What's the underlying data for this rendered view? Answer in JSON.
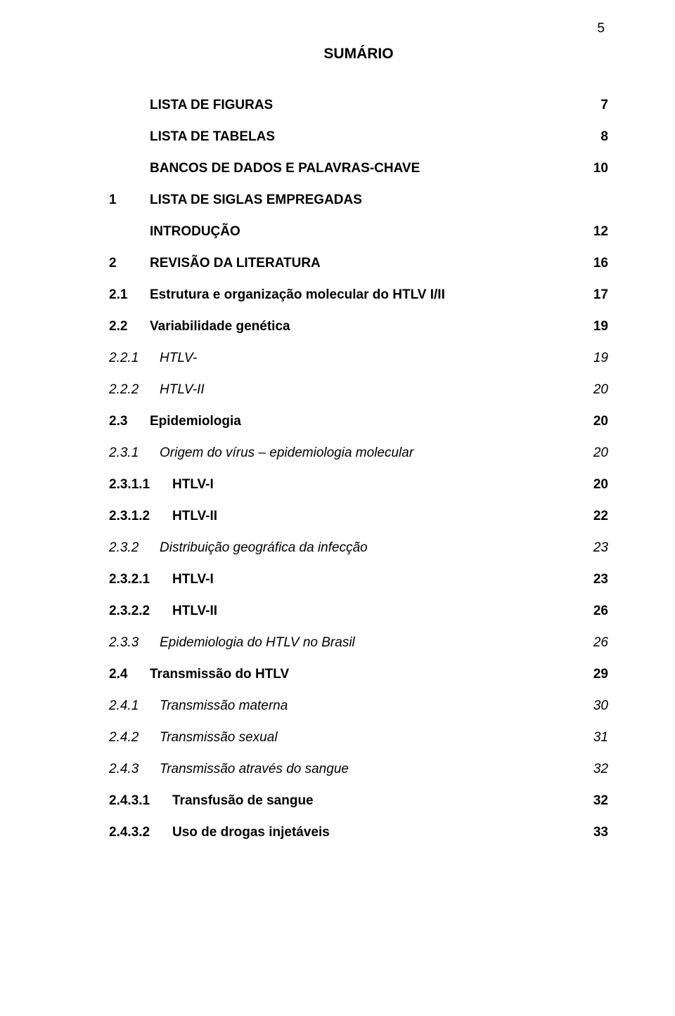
{
  "pagenum": "5",
  "title": "SUMÁRIO",
  "rows": [
    {
      "num": "",
      "label": "LISTA DE FIGURAS",
      "page": "7",
      "bold": true,
      "italic": false,
      "numClass": "",
      "indent": true
    },
    {
      "num": "",
      "label": "LISTA DE TABELAS",
      "page": "8",
      "bold": true,
      "italic": false,
      "numClass": "",
      "indent": true
    },
    {
      "num": "",
      "label": "BANCOS DE DADOS E PALAVRAS-CHAVE",
      "page": "10",
      "bold": true,
      "italic": false,
      "numClass": "",
      "indent": true
    },
    {
      "num": "1",
      "label": "LISTA DE SIGLAS EMPREGADAS",
      "page": "",
      "bold": true,
      "italic": false,
      "numClass": "w-num-1",
      "indent": false
    },
    {
      "num": "",
      "label": "INTRODUÇÃO",
      "page": "12",
      "bold": true,
      "italic": false,
      "numClass": "",
      "indent": true
    },
    {
      "num": "2",
      "label": "REVISÃO DA LITERATURA",
      "page": "16",
      "bold": true,
      "italic": false,
      "numClass": "w-num-1",
      "indent": false
    },
    {
      "num": "2.1",
      "label": "Estrutura e organização molecular do HTLV I/II",
      "page": "17",
      "bold": true,
      "italic": false,
      "numClass": "w-num-1",
      "indent": false
    },
    {
      "num": "2.2",
      "label": "Variabilidade genética",
      "page": "19",
      "bold": true,
      "italic": false,
      "numClass": "w-num-1",
      "indent": false
    },
    {
      "num": "2.2.1",
      "label": "HTLV-",
      "page": "19",
      "bold": false,
      "italic": true,
      "numClass": "w-num-2",
      "indent": false
    },
    {
      "num": "2.2.2",
      "label": "HTLV-II",
      "page": "20",
      "bold": false,
      "italic": true,
      "numClass": "w-num-2",
      "indent": false
    },
    {
      "num": "2.3",
      "label": "Epidemiologia",
      "page": "20",
      "bold": true,
      "italic": false,
      "numClass": "w-num-1",
      "indent": false
    },
    {
      "num": "2.3.1",
      "label": "Origem do vírus – epidemiologia molecular",
      "page": "20",
      "bold": false,
      "italic": true,
      "numClass": "w-num-2",
      "indent": false
    },
    {
      "num": "2.3.1.1",
      "label": "HTLV-I",
      "page": "20",
      "bold": true,
      "italic": false,
      "numClass": "w-num-3",
      "indent": false
    },
    {
      "num": "2.3.1.2",
      "label": "HTLV-II",
      "page": "22",
      "bold": true,
      "italic": false,
      "numClass": "w-num-3",
      "indent": false
    },
    {
      "num": "2.3.2",
      "label": "Distribuição geográfica da infecção",
      "page": "23",
      "bold": false,
      "italic": true,
      "numClass": "w-num-2",
      "indent": false
    },
    {
      "num": "2.3.2.1",
      "label": "HTLV-I",
      "page": "23",
      "bold": true,
      "italic": false,
      "numClass": "w-num-3",
      "indent": false
    },
    {
      "num": "2.3.2.2",
      "label": "HTLV-II",
      "page": "26",
      "bold": true,
      "italic": false,
      "numClass": "w-num-3",
      "indent": false
    },
    {
      "num": "2.3.3",
      "label": "Epidemiologia do HTLV no Brasil",
      "page": "26",
      "bold": false,
      "italic": true,
      "numClass": "w-num-2",
      "indent": false
    },
    {
      "num": "2.4",
      "label": "Transmissão do HTLV",
      "page": "29",
      "bold": true,
      "italic": false,
      "numClass": "w-num-1",
      "indent": false
    },
    {
      "num": "2.4.1",
      "label": "Transmissão materna",
      "page": "30",
      "bold": false,
      "italic": true,
      "numClass": "w-num-2",
      "indent": false
    },
    {
      "num": "2.4.2",
      "label": "Transmissão sexual",
      "page": "31",
      "bold": false,
      "italic": true,
      "numClass": "w-num-2",
      "indent": false
    },
    {
      "num": "2.4.3",
      "label": "Transmissão através do sangue",
      "page": "32",
      "bold": false,
      "italic": true,
      "numClass": "w-num-2",
      "indent": false
    },
    {
      "num": "2.4.3.1",
      "label": "Transfusão de sangue",
      "page": "32",
      "bold": true,
      "italic": false,
      "numClass": "w-num-3",
      "indent": false
    },
    {
      "num": "2.4.3.2",
      "label": "Uso de drogas injetáveis",
      "page": "33",
      "bold": true,
      "italic": false,
      "numClass": "w-num-3",
      "indent": false
    }
  ]
}
